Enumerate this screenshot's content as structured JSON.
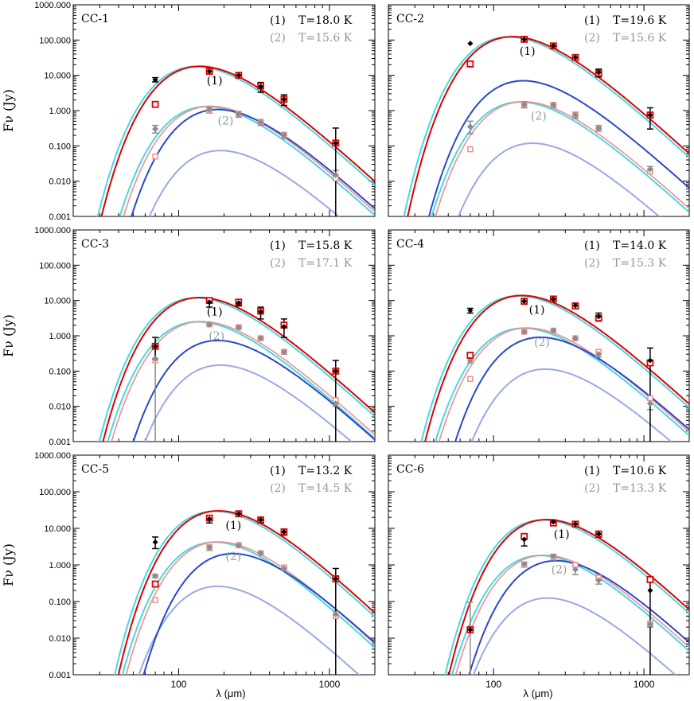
{
  "chart_data": {
    "type": "line",
    "description_axes": {
      "xscale": "log",
      "yscale": "log",
      "xlim": [
        20,
        2000
      ],
      "ylim": [
        0.001,
        1000
      ],
      "ytick_labels": [
        "1000.000",
        "100.000",
        "10.000",
        "1.000",
        "0.100",
        "0.010",
        "0.001"
      ],
      "ytick_values": [
        1000,
        100,
        10,
        1,
        0.1,
        0.01,
        0.001
      ],
      "xtick_labels": [
        "100",
        "1000"
      ],
      "xtick_values": [
        100,
        1000
      ],
      "xlabel": "λ (μm)",
      "ylabel": "Fν (Jy)"
    },
    "colors": {
      "obs1": "#000000",
      "mod1": "#dd0000",
      "obs2": "#8c8c8c",
      "mod2": "#ef8e8e",
      "cyan": "#49d7e1",
      "blue1": "#2a47cc",
      "blue2": "#9aa8e6",
      "label2": "#8c9a9a"
    },
    "panels": [
      {
        "title": "CC-1",
        "comp1": {
          "label": "(1)",
          "temp": "T=18.0 K"
        },
        "comp2": {
          "label": "(2)",
          "temp": "T=15.6 K"
        },
        "cyan1": {
          "amp": 15.6,
          "peak": 165
        },
        "cyan2": {
          "amp": 1.15,
          "peak": 195
        },
        "blue1": {
          "amp": 0.95,
          "peak": 230
        },
        "blue2": {
          "amp": 0.065,
          "peak": 240
        },
        "obs1": [
          {
            "x": 70,
            "y": 7.5,
            "e": [
              6.5,
              8.6
            ]
          },
          {
            "x": 160,
            "y": 13,
            "e": [
              11,
              15
            ]
          },
          {
            "x": 250,
            "y": 10
          },
          {
            "x": 350,
            "y": 4.8,
            "e": [
              3.3,
              6.3
            ]
          },
          {
            "x": 500,
            "y": 2.1,
            "e": [
              1.4,
              2.8
            ]
          },
          {
            "x": 1100,
            "y": 0.12,
            "e": [
              0.001,
              0.32
            ]
          }
        ],
        "mod1": [
          {
            "x": 70,
            "y": 1.5
          },
          {
            "x": 160,
            "y": 13
          },
          {
            "x": 250,
            "y": 10
          },
          {
            "x": 350,
            "y": 5
          },
          {
            "x": 500,
            "y": 2.1
          },
          {
            "x": 1100,
            "y": 0.12
          }
        ],
        "obs2": [
          {
            "x": 70,
            "y": 0.3,
            "e": [
              0.23,
              0.38
            ]
          },
          {
            "x": 160,
            "y": 1.05,
            "e": [
              0.85,
              1.25
            ]
          },
          {
            "x": 250,
            "y": 0.8,
            "e": [
              0.65,
              0.95
            ]
          },
          {
            "x": 350,
            "y": 0.47,
            "e": [
              0.38,
              0.56
            ]
          },
          {
            "x": 500,
            "y": 0.2,
            "e": [
              0.16,
              0.24
            ]
          },
          {
            "x": 1100,
            "y": 0.015,
            "e": [
              0.011,
              0.02
            ]
          }
        ],
        "mod2": [
          {
            "x": 70,
            "y": 0.05
          },
          {
            "x": 160,
            "y": 1.0
          },
          {
            "x": 250,
            "y": 0.8
          },
          {
            "x": 350,
            "y": 0.47
          },
          {
            "x": 500,
            "y": 0.2
          },
          {
            "x": 1100,
            "y": 0.012
          }
        ]
      },
      {
        "title": "CC-2",
        "comp1": {
          "label": "(1)",
          "temp": "T=19.6 K"
        },
        "comp2": {
          "label": "(2)",
          "temp": "T=15.6 K"
        },
        "cyan1": {
          "amp": 108,
          "peak": 160
        },
        "cyan2": {
          "amp": 1.55,
          "peak": 190
        },
        "blue1": {
          "amp": 6.2,
          "peak": 200
        },
        "blue2": {
          "amp": 0.105,
          "peak": 230
        },
        "obs1": [
          {
            "x": 70,
            "y": 80
          },
          {
            "x": 160,
            "y": 105
          },
          {
            "x": 250,
            "y": 68
          },
          {
            "x": 350,
            "y": 32
          },
          {
            "x": 500,
            "y": 12,
            "e": [
              9,
              15
            ]
          },
          {
            "x": 1100,
            "y": 0.75,
            "e": [
              0.3,
              1.2
            ]
          }
        ],
        "mod1": [
          {
            "x": 70,
            "y": 21
          },
          {
            "x": 160,
            "y": 105
          },
          {
            "x": 250,
            "y": 68
          },
          {
            "x": 350,
            "y": 32
          },
          {
            "x": 500,
            "y": 11.5
          },
          {
            "x": 1100,
            "y": 0.75
          }
        ],
        "obs2": [
          {
            "x": 70,
            "y": 0.35,
            "e": [
              0.22,
              0.5
            ]
          },
          {
            "x": 160,
            "y": 1.5,
            "e": [
              1.2,
              1.8
            ]
          },
          {
            "x": 250,
            "y": 1.45,
            "e": [
              1.2,
              1.7
            ]
          },
          {
            "x": 350,
            "y": 0.75,
            "e": [
              0.6,
              0.9
            ]
          },
          {
            "x": 500,
            "y": 0.32,
            "e": [
              0.26,
              0.38
            ]
          },
          {
            "x": 1100,
            "y": 0.022,
            "e": [
              0.018,
              0.026
            ]
          }
        ],
        "mod2": [
          {
            "x": 70,
            "y": 0.08
          },
          {
            "x": 160,
            "y": 1.5
          },
          {
            "x": 250,
            "y": 1.45
          },
          {
            "x": 350,
            "y": 0.75
          },
          {
            "x": 500,
            "y": 0.32
          },
          {
            "x": 1100,
            "y": 0.019
          }
        ]
      },
      {
        "title": "CC-3",
        "comp1": {
          "label": "(1)",
          "temp": "T=15.8 K"
        },
        "comp2": {
          "label": "(2)",
          "temp": "T=17.1 K"
        },
        "cyan1": {
          "amp": 10.5,
          "peak": 165
        },
        "cyan2": {
          "amp": 2.2,
          "peak": 170
        },
        "blue1": {
          "amp": 0.65,
          "peak": 230
        },
        "blue2": {
          "amp": 0.13,
          "peak": 240
        },
        "obs1": [
          {
            "x": 70,
            "y": 0.5,
            "e": [
              0.22,
              0.9
            ]
          },
          {
            "x": 160,
            "y": 9,
            "e": [
              6.5,
              11.5
            ]
          },
          {
            "x": 250,
            "y": 8.5,
            "e": [
              7,
              10
            ]
          },
          {
            "x": 350,
            "y": 4.8,
            "e": [
              3,
              6.5
            ]
          },
          {
            "x": 500,
            "y": 1.8,
            "e": [
              0.9,
              3
            ]
          },
          {
            "x": 1100,
            "y": 0.1,
            "e": [
              0.001,
              0.2
            ]
          }
        ],
        "mod1": [
          {
            "x": 70,
            "y": 0.5
          },
          {
            "x": 160,
            "y": 10
          },
          {
            "x": 250,
            "y": 9
          },
          {
            "x": 350,
            "y": 5
          },
          {
            "x": 500,
            "y": 2
          },
          {
            "x": 1100,
            "y": 0.1
          }
        ],
        "obs2": [
          {
            "x": 70,
            "y": 0.22,
            "e": [
              0.001,
              0.6
            ]
          },
          {
            "x": 160,
            "y": 2.1,
            "e": [
              1.9,
              2.3
            ]
          },
          {
            "x": 250,
            "y": 1.75,
            "e": [
              1.6,
              1.9
            ]
          },
          {
            "x": 350,
            "y": 0.85,
            "e": [
              0.78,
              0.92
            ]
          },
          {
            "x": 500,
            "y": 0.35,
            "e": [
              0.3,
              0.4
            ]
          },
          {
            "x": 1100,
            "y": 0.012,
            "e": [
              0.01,
              0.014
            ]
          }
        ],
        "mod2": [
          {
            "x": 70,
            "y": 0.2
          },
          {
            "x": 160,
            "y": 2.1
          },
          {
            "x": 250,
            "y": 1.75
          },
          {
            "x": 350,
            "y": 0.85
          },
          {
            "x": 500,
            "y": 0.35
          },
          {
            "x": 1100,
            "y": 0.015
          }
        ]
      },
      {
        "title": "CC-4",
        "comp1": {
          "label": "(1)",
          "temp": "T=14.0 K"
        },
        "comp2": {
          "label": "(2)",
          "temp": "T=15.3 K"
        },
        "cyan1": {
          "amp": 12,
          "peak": 185
        },
        "cyan2": {
          "amp": 1.45,
          "peak": 200
        },
        "blue1": {
          "amp": 0.8,
          "peak": 260
        },
        "blue2": {
          "amp": 0.1,
          "peak": 280
        },
        "obs1": [
          {
            "x": 70,
            "y": 5.2,
            "e": [
              4.4,
              6
            ]
          },
          {
            "x": 160,
            "y": 9.5
          },
          {
            "x": 250,
            "y": 11
          },
          {
            "x": 350,
            "y": 7.2,
            "e": [
              6,
              8.5
            ]
          },
          {
            "x": 500,
            "y": 3.5,
            "e": [
              2.6,
              4.4
            ]
          },
          {
            "x": 1100,
            "y": 0.2,
            "e": [
              0.001,
              0.45
            ]
          }
        ],
        "mod1": [
          {
            "x": 70,
            "y": 0.28
          },
          {
            "x": 160,
            "y": 9.5
          },
          {
            "x": 250,
            "y": 11
          },
          {
            "x": 350,
            "y": 7
          },
          {
            "x": 500,
            "y": 3.2
          },
          {
            "x": 1100,
            "y": 0.17
          }
        ],
        "obs2": [
          {
            "x": 70,
            "y": 0.2,
            "e": [
              0.17,
              0.23
            ]
          },
          {
            "x": 160,
            "y": 1.3
          },
          {
            "x": 250,
            "y": 1.4
          },
          {
            "x": 350,
            "y": 0.85
          },
          {
            "x": 500,
            "y": 0.3,
            "e": [
              0.25,
              0.35
            ]
          },
          {
            "x": 1100,
            "y": 0.012,
            "e": [
              0.008,
              0.016
            ]
          }
        ],
        "mod2": [
          {
            "x": 70,
            "y": 0.06
          },
          {
            "x": 160,
            "y": 1.3
          },
          {
            "x": 250,
            "y": 1.4
          },
          {
            "x": 350,
            "y": 0.85
          },
          {
            "x": 500,
            "y": 0.35
          },
          {
            "x": 1100,
            "y": 0.017
          }
        ]
      },
      {
        "title": "CC-5",
        "comp1": {
          "label": "(1)",
          "temp": "T=13.2 K"
        },
        "comp2": {
          "label": "(2)",
          "temp": "T=14.5 K"
        },
        "cyan1": {
          "amp": 26,
          "peak": 220
        },
        "cyan2": {
          "amp": 3.7,
          "peak": 220
        },
        "blue1": {
          "amp": 1.8,
          "peak": 290
        },
        "blue2": {
          "amp": 0.23,
          "peak": 230
        },
        "obs1": [
          {
            "x": 70,
            "y": 4.2,
            "e": [
              2.8,
              5.8
            ]
          },
          {
            "x": 160,
            "y": 18,
            "e": [
              14,
              22
            ]
          },
          {
            "x": 250,
            "y": 25
          },
          {
            "x": 350,
            "y": 17,
            "e": [
              14,
              20
            ]
          },
          {
            "x": 500,
            "y": 8,
            "e": [
              6.5,
              9.5
            ]
          },
          {
            "x": 1100,
            "y": 0.42,
            "e": [
              0.001,
              0.8
            ]
          }
        ],
        "mod1": [
          {
            "x": 70,
            "y": 0.3
          },
          {
            "x": 160,
            "y": 19
          },
          {
            "x": 250,
            "y": 25
          },
          {
            "x": 350,
            "y": 17
          },
          {
            "x": 500,
            "y": 8
          },
          {
            "x": 1100,
            "y": 0.42
          }
        ],
        "obs2": [
          {
            "x": 70,
            "y": 0.5,
            "e": [
              0.45,
              0.55
            ]
          },
          {
            "x": 160,
            "y": 3.0,
            "e": [
              2.5,
              3.5
            ]
          },
          {
            "x": 250,
            "y": 3.4,
            "e": [
              3,
              3.8
            ]
          },
          {
            "x": 350,
            "y": 2.1,
            "e": [
              1.9,
              2.3
            ]
          },
          {
            "x": 500,
            "y": 0.8,
            "e": [
              0.72,
              0.88
            ]
          },
          {
            "x": 1100,
            "y": 0.045,
            "e": [
              0.035,
              0.055
            ]
          }
        ],
        "mod2": [
          {
            "x": 70,
            "y": 0.11
          },
          {
            "x": 160,
            "y": 3.0
          },
          {
            "x": 250,
            "y": 3.5
          },
          {
            "x": 350,
            "y": 2.1
          },
          {
            "x": 500,
            "y": 0.85
          },
          {
            "x": 1100,
            "y": 0.04
          }
        ]
      },
      {
        "title": "CC-6",
        "comp1": {
          "label": "(1)",
          "temp": "T=10.6 K"
        },
        "comp2": {
          "label": "(2)",
          "temp": "T=13.3 K"
        },
        "cyan1": {
          "amp": 15,
          "peak": 270
        },
        "cyan2": {
          "amp": 1.6,
          "peak": 260
        },
        "blue1": {
          "amp": 1.15,
          "peak": 330
        },
        "blue2": {
          "amp": 0.11,
          "peak": 290
        },
        "obs1": [
          {
            "x": 70,
            "y": 0.017
          },
          {
            "x": 160,
            "y": 5,
            "e": [
              3.3,
              6.7
            ]
          },
          {
            "x": 250,
            "y": 15,
            "e": [
              13,
              17
            ]
          },
          {
            "x": 350,
            "y": 13
          },
          {
            "x": 500,
            "y": 7,
            "e": [
              5.7,
              8.3
            ]
          },
          {
            "x": 1100,
            "y": 0.2,
            "e": [
              0.001,
              0.45
            ]
          }
        ],
        "mod1": [
          {
            "x": 70,
            "y": 0.017
          },
          {
            "x": 160,
            "y": 6
          },
          {
            "x": 250,
            "y": 14
          },
          {
            "x": 350,
            "y": 13
          },
          {
            "x": 500,
            "y": 7
          },
          {
            "x": 1100,
            "y": 0.4
          }
        ],
        "obs2": [
          {
            "x": 70,
            "y": 0.017,
            "e": [
              0.001,
              0.095
            ]
          },
          {
            "x": 160,
            "y": 1.05,
            "e": [
              0.9,
              1.2
            ]
          },
          {
            "x": 250,
            "y": 1.7,
            "e": [
              1.45,
              1.95
            ]
          },
          {
            "x": 350,
            "y": 0.75,
            "e": [
              0.55,
              0.95
            ]
          },
          {
            "x": 500,
            "y": 0.38,
            "e": [
              0.3,
              0.46
            ]
          },
          {
            "x": 1100,
            "y": 0.024,
            "e": [
              0.02,
              0.028
            ]
          }
        ],
        "mod2": [
          {
            "x": 70,
            "y": 0.017
          },
          {
            "x": 160,
            "y": 1.0
          },
          {
            "x": 250,
            "y": 1.6
          },
          {
            "x": 350,
            "y": 1.0
          },
          {
            "x": 500,
            "y": 0.45
          },
          {
            "x": 1100,
            "y": 0.025
          }
        ]
      }
    ]
  }
}
